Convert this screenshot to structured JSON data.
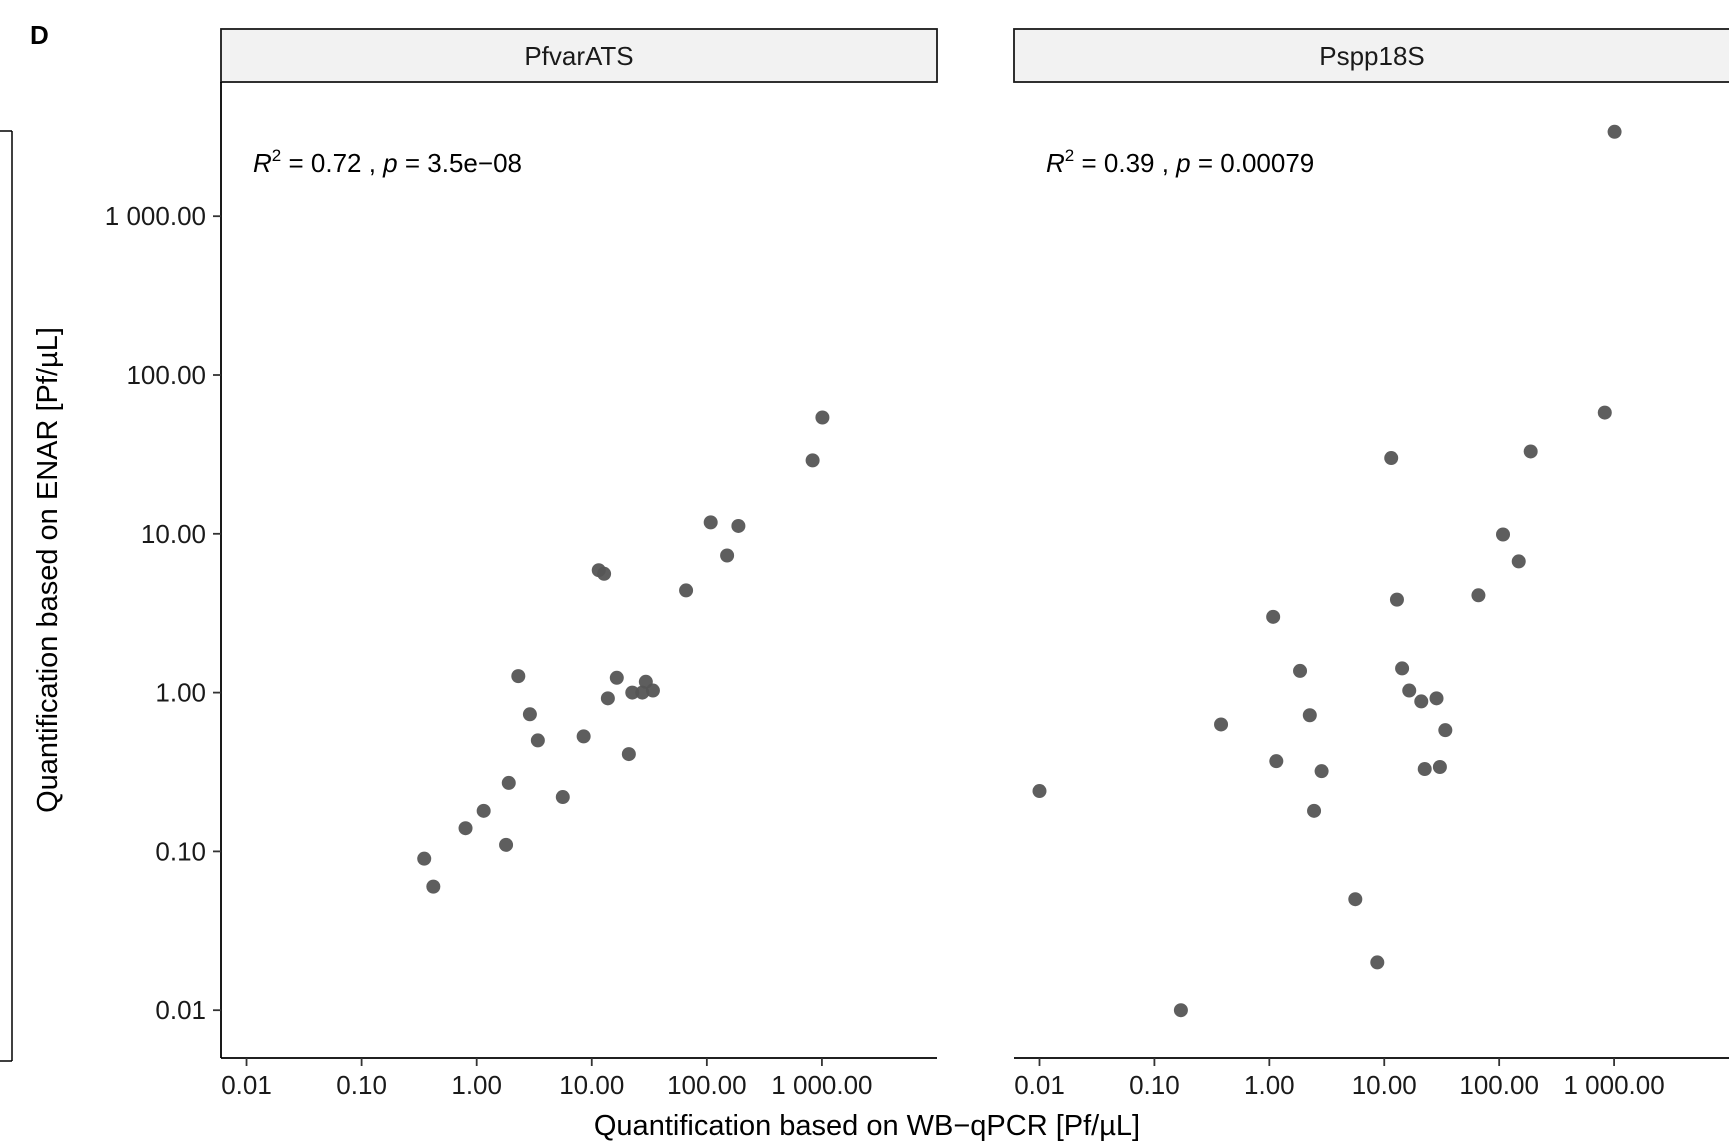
{
  "panel_letter": "D",
  "chart_data": {
    "type": "scatter",
    "xlabel": "Quantification based on WB−qPCR [Pf/µL]",
    "ylabel": "Quantification based on ENAR [Pf/µL]",
    "x_scale": "log10",
    "y_scale": "log10",
    "xlim": [
      0.006,
      10000
    ],
    "ylim": [
      0.005,
      7000
    ],
    "x_ticks": [
      {
        "value": 0.01,
        "label": "0.01"
      },
      {
        "value": 0.1,
        "label": "0.10"
      },
      {
        "value": 1,
        "label": "1.00"
      },
      {
        "value": 10,
        "label": "10.00"
      },
      {
        "value": 100,
        "label": "100.00"
      },
      {
        "value": 1000,
        "label": "1 000.00"
      }
    ],
    "y_ticks": [
      {
        "value": 0.01,
        "label": "0.01"
      },
      {
        "value": 0.1,
        "label": "0.10"
      },
      {
        "value": 1,
        "label": "1.00"
      },
      {
        "value": 10,
        "label": "10.00"
      },
      {
        "value": 100,
        "label": "100.00"
      },
      {
        "value": 1000,
        "label": "1 000.00"
      }
    ],
    "point_color": "#555555",
    "facets": [
      {
        "name": "PfvarATS",
        "r2": "0.72",
        "p": "3.5e−08",
        "points": [
          {
            "x": 0.35,
            "y": 0.09
          },
          {
            "x": 0.42,
            "y": 0.06
          },
          {
            "x": 0.8,
            "y": 0.14
          },
          {
            "x": 1.15,
            "y": 0.18
          },
          {
            "x": 1.8,
            "y": 0.11
          },
          {
            "x": 1.9,
            "y": 0.27
          },
          {
            "x": 2.3,
            "y": 1.27
          },
          {
            "x": 2.9,
            "y": 0.73
          },
          {
            "x": 3.4,
            "y": 0.5
          },
          {
            "x": 5.6,
            "y": 0.22
          },
          {
            "x": 8.5,
            "y": 0.53
          },
          {
            "x": 11.5,
            "y": 5.9
          },
          {
            "x": 12.8,
            "y": 5.6
          },
          {
            "x": 13.8,
            "y": 0.92
          },
          {
            "x": 16.5,
            "y": 1.24
          },
          {
            "x": 21,
            "y": 0.41
          },
          {
            "x": 22.5,
            "y": 1.0
          },
          {
            "x": 27.5,
            "y": 1.0
          },
          {
            "x": 29.5,
            "y": 1.17
          },
          {
            "x": 34,
            "y": 1.03
          },
          {
            "x": 66,
            "y": 4.4
          },
          {
            "x": 108,
            "y": 11.8
          },
          {
            "x": 150,
            "y": 7.3
          },
          {
            "x": 188,
            "y": 11.2
          },
          {
            "x": 830,
            "y": 29
          },
          {
            "x": 1010,
            "y": 54
          }
        ]
      },
      {
        "name": "Pspp18S",
        "r2": "0.39",
        "p": "0.00079",
        "points": [
          {
            "x": 0.01,
            "y": 0.24
          },
          {
            "x": 0.17,
            "y": 0.01
          },
          {
            "x": 0.38,
            "y": 0.63
          },
          {
            "x": 1.08,
            "y": 3.0
          },
          {
            "x": 1.15,
            "y": 0.37
          },
          {
            "x": 1.85,
            "y": 1.37
          },
          {
            "x": 2.25,
            "y": 0.72
          },
          {
            "x": 2.45,
            "y": 0.18
          },
          {
            "x": 2.85,
            "y": 0.32
          },
          {
            "x": 5.6,
            "y": 0.05
          },
          {
            "x": 8.7,
            "y": 0.02
          },
          {
            "x": 11.5,
            "y": 30
          },
          {
            "x": 12.9,
            "y": 3.85
          },
          {
            "x": 14.3,
            "y": 1.42
          },
          {
            "x": 16.5,
            "y": 1.03
          },
          {
            "x": 21,
            "y": 0.88
          },
          {
            "x": 22.5,
            "y": 0.33
          },
          {
            "x": 28.5,
            "y": 0.92
          },
          {
            "x": 30.5,
            "y": 0.34
          },
          {
            "x": 34,
            "y": 0.58
          },
          {
            "x": 66,
            "y": 4.1
          },
          {
            "x": 108,
            "y": 9.9
          },
          {
            "x": 148,
            "y": 6.7
          },
          {
            "x": 188,
            "y": 33
          },
          {
            "x": 830,
            "y": 58
          },
          {
            "x": 1010,
            "y": 3400
          }
        ]
      }
    ]
  }
}
